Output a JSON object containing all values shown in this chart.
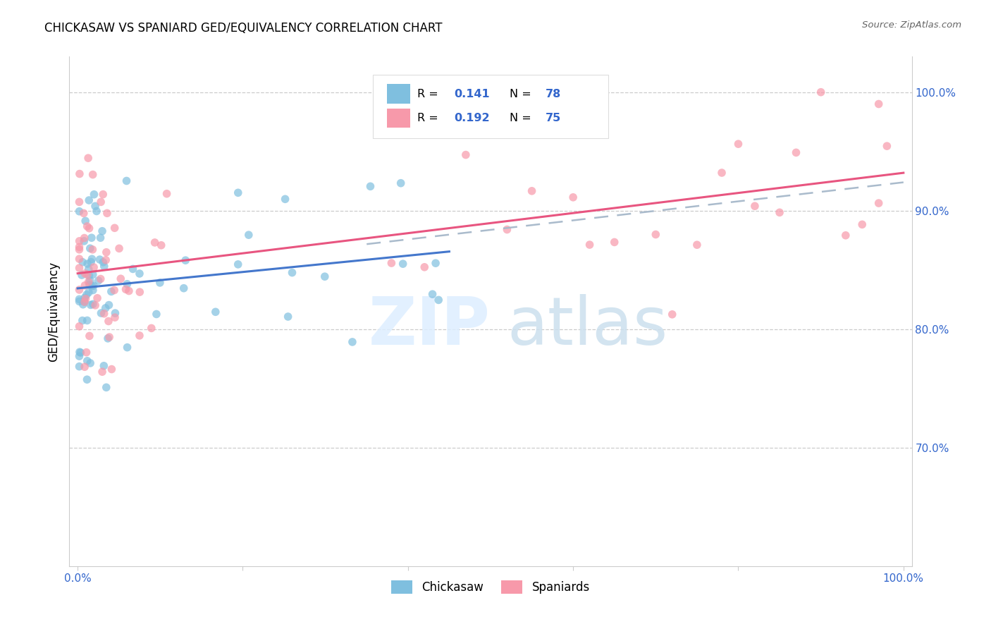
{
  "title": "CHICKASAW VS SPANIARD GED/EQUIVALENCY CORRELATION CHART",
  "source": "Source: ZipAtlas.com",
  "ylabel": "GED/Equivalency",
  "legend_chickasaw": "Chickasaw",
  "legend_spaniards": "Spaniards",
  "R_chickasaw": 0.141,
  "N_chickasaw": 78,
  "R_spaniards": 0.192,
  "N_spaniards": 75,
  "color_chickasaw": "#7fbfdf",
  "color_spaniards": "#f799aa",
  "color_blue_text": "#3366cc",
  "color_dash": "#aabbcc",
  "ylim_low": 0.6,
  "ylim_high": 1.03,
  "xlim_low": -0.01,
  "xlim_high": 1.01,
  "yticks": [
    0.7,
    0.8,
    0.9,
    1.0
  ],
  "ytick_labels": [
    "70.0%",
    "80.0%",
    "90.0%",
    "100.0%"
  ],
  "xtick_positions": [
    0.0,
    1.0
  ],
  "xtick_labels": [
    "0.0%",
    "100.0%"
  ],
  "watermark_zip": "ZIP",
  "watermark_atlas": "atlas"
}
